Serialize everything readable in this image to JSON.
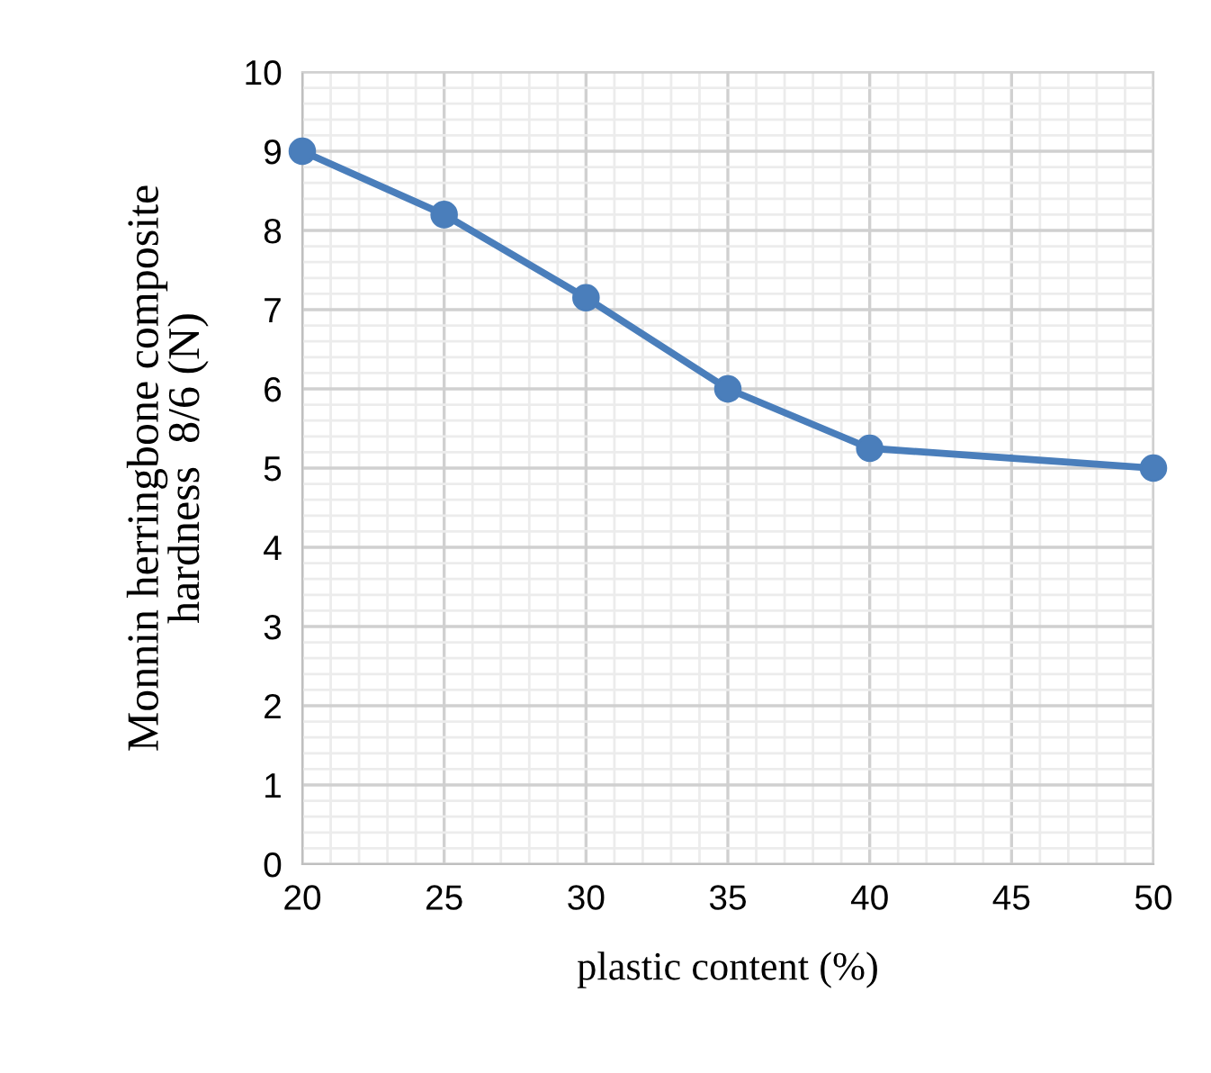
{
  "chart_data": {
    "type": "line",
    "xlabel": "plastic content (%)",
    "ylabel": "Monnin herringbone composite\nhardness  8/6 (N)",
    "x": [
      20,
      25,
      30,
      35,
      40,
      50
    ],
    "series": [
      {
        "color": "#4a7ebb",
        "values": [
          9.0,
          8.2,
          7.15,
          6.0,
          5.25,
          5.0
        ]
      }
    ],
    "xlim": [
      20,
      50
    ],
    "xticks": [
      20,
      25,
      30,
      35,
      40,
      45,
      50
    ],
    "ylim": [
      0,
      10
    ],
    "yticks": [
      0,
      1,
      2,
      3,
      4,
      5,
      6,
      7,
      8,
      9,
      10
    ],
    "grid": true,
    "marker": "circle",
    "line_style": "solid"
  }
}
